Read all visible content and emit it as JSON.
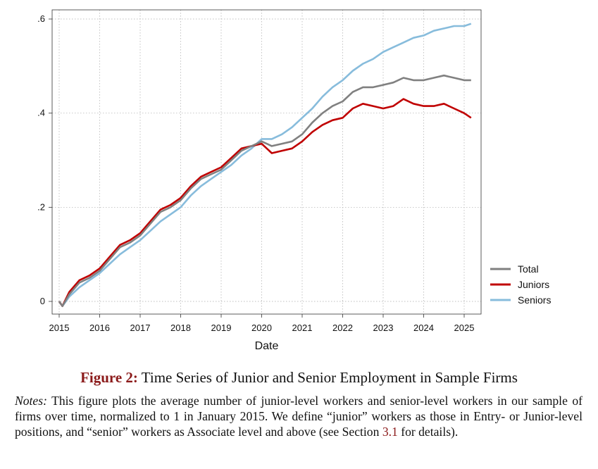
{
  "figure": {
    "label": "Figure 2:",
    "title": "Time Series of Junior and Senior Employment in Sample Firms",
    "notes_label": "Notes:",
    "notes_text_1": " This figure plots the average number of junior-level workers and senior-level workers in our sample of firms over time, normalized to 1 in January 2015. We define “junior” workers as those in Entry- or Junior-level positions, and “senior” workers as Associate level and above (see Section ",
    "notes_ref": "3.1",
    "notes_text_2": " for details)."
  },
  "chart_data": {
    "type": "line",
    "title": "",
    "xlabel": "Date",
    "ylabel": "",
    "xlim": [
      2015.0,
      2025.25
    ],
    "ylim": [
      -0.01,
      0.615
    ],
    "x_ticks": [
      2015,
      2016,
      2017,
      2018,
      2019,
      2020,
      2021,
      2022,
      2023,
      2024,
      2025
    ],
    "x_tick_labels": [
      "2015",
      "2016",
      "2017",
      "2018",
      "2019",
      "2020",
      "2021",
      "2022",
      "2023",
      "2024",
      "2025"
    ],
    "y_ticks": [
      0,
      0.2,
      0.4,
      0.6
    ],
    "y_tick_labels": [
      "0",
      ".2",
      ".4",
      ".6"
    ],
    "grid": true,
    "legend_position": "right",
    "colors": {
      "Total": "#808080",
      "Juniors": "#c00000",
      "Seniors": "#87bcdc"
    },
    "series": [
      {
        "name": "Total",
        "x": [
          2015.0,
          2015.08,
          2015.25,
          2015.5,
          2015.75,
          2016.0,
          2016.25,
          2016.5,
          2016.75,
          2017.0,
          2017.25,
          2017.5,
          2017.75,
          2018.0,
          2018.25,
          2018.5,
          2018.75,
          2019.0,
          2019.25,
          2019.5,
          2019.75,
          2020.0,
          2020.25,
          2020.5,
          2020.75,
          2021.0,
          2021.25,
          2021.5,
          2021.75,
          2022.0,
          2022.25,
          2022.5,
          2022.75,
          2023.0,
          2023.25,
          2023.5,
          2023.75,
          2024.0,
          2024.25,
          2024.5,
          2024.75,
          2025.0,
          2025.17
        ],
        "y": [
          0.0,
          -0.01,
          0.015,
          0.04,
          0.05,
          0.065,
          0.09,
          0.115,
          0.125,
          0.14,
          0.165,
          0.19,
          0.2,
          0.215,
          0.24,
          0.26,
          0.27,
          0.28,
          0.3,
          0.32,
          0.33,
          0.34,
          0.33,
          0.335,
          0.34,
          0.355,
          0.38,
          0.4,
          0.415,
          0.425,
          0.445,
          0.455,
          0.455,
          0.46,
          0.465,
          0.475,
          0.47,
          0.47,
          0.475,
          0.48,
          0.475,
          0.47,
          0.47
        ]
      },
      {
        "name": "Juniors",
        "x": [
          2015.0,
          2015.08,
          2015.25,
          2015.5,
          2015.75,
          2016.0,
          2016.25,
          2016.5,
          2016.75,
          2017.0,
          2017.25,
          2017.5,
          2017.75,
          2018.0,
          2018.25,
          2018.5,
          2018.75,
          2019.0,
          2019.25,
          2019.5,
          2019.75,
          2020.0,
          2020.25,
          2020.5,
          2020.75,
          2021.0,
          2021.25,
          2021.5,
          2021.75,
          2022.0,
          2022.25,
          2022.5,
          2022.75,
          2023.0,
          2023.25,
          2023.5,
          2023.75,
          2024.0,
          2024.25,
          2024.5,
          2024.75,
          2025.0,
          2025.17
        ],
        "y": [
          0.0,
          -0.01,
          0.02,
          0.045,
          0.055,
          0.07,
          0.095,
          0.12,
          0.13,
          0.145,
          0.17,
          0.195,
          0.205,
          0.22,
          0.245,
          0.265,
          0.275,
          0.285,
          0.305,
          0.325,
          0.33,
          0.335,
          0.315,
          0.32,
          0.325,
          0.34,
          0.36,
          0.375,
          0.385,
          0.39,
          0.41,
          0.42,
          0.415,
          0.41,
          0.415,
          0.43,
          0.42,
          0.415,
          0.415,
          0.42,
          0.41,
          0.4,
          0.39
        ]
      },
      {
        "name": "Seniors",
        "x": [
          2015.0,
          2015.08,
          2015.25,
          2015.5,
          2015.75,
          2016.0,
          2016.25,
          2016.5,
          2016.75,
          2017.0,
          2017.25,
          2017.5,
          2017.75,
          2018.0,
          2018.25,
          2018.5,
          2018.75,
          2019.0,
          2019.25,
          2019.5,
          2019.75,
          2020.0,
          2020.25,
          2020.5,
          2020.75,
          2021.0,
          2021.25,
          2021.5,
          2021.75,
          2022.0,
          2022.25,
          2022.5,
          2022.75,
          2023.0,
          2023.25,
          2023.5,
          2023.75,
          2024.0,
          2024.25,
          2024.5,
          2024.75,
          2025.0,
          2025.17
        ],
        "y": [
          0.0,
          -0.01,
          0.01,
          0.03,
          0.045,
          0.06,
          0.08,
          0.1,
          0.115,
          0.13,
          0.15,
          0.17,
          0.185,
          0.2,
          0.225,
          0.245,
          0.26,
          0.275,
          0.29,
          0.31,
          0.325,
          0.345,
          0.345,
          0.355,
          0.37,
          0.39,
          0.41,
          0.435,
          0.455,
          0.47,
          0.49,
          0.505,
          0.515,
          0.53,
          0.54,
          0.55,
          0.56,
          0.565,
          0.575,
          0.58,
          0.585,
          0.585,
          0.59
        ]
      }
    ]
  }
}
